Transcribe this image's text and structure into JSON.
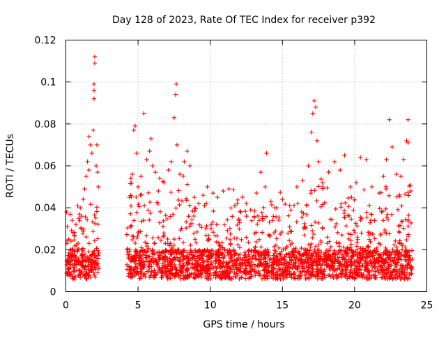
{
  "chart_data": {
    "type": "scatter",
    "title": "Day 128 of 2023, Rate Of TEC Index for receiver p392",
    "xlabel": "GPS time / hours",
    "ylabel": "ROTI / TECUs",
    "xlim": [
      0,
      25
    ],
    "ylim": [
      0,
      0.12
    ],
    "xticks": [
      0,
      5,
      10,
      15,
      20,
      25
    ],
    "xtick_labels": [
      "0",
      "5",
      "10",
      "15",
      "20",
      "25"
    ],
    "yticks": [
      0,
      0.02,
      0.04,
      0.06,
      0.08,
      0.1,
      0.12
    ],
    "ytick_labels": [
      "0",
      "0.02",
      "0.04",
      "0.06",
      "0.08",
      "0.1",
      "0.12"
    ],
    "grid": true,
    "marker": "plus",
    "color": "#ff0000",
    "data_gap_hours": [
      2.3,
      4.2
    ],
    "points": [
      [
        0.05,
        0.038
      ],
      [
        0.1,
        0.031
      ],
      [
        0.2,
        0.025
      ],
      [
        0.3,
        0.02
      ],
      [
        0.5,
        0.028
      ],
      [
        0.7,
        0.032
      ],
      [
        0.9,
        0.035
      ],
      [
        1.0,
        0.04
      ],
      [
        1.1,
        0.036
      ],
      [
        1.2,
        0.044
      ],
      [
        1.3,
        0.049
      ],
      [
        1.4,
        0.055
      ],
      [
        1.5,
        0.062
      ],
      [
        1.6,
        0.058
      ],
      [
        1.6,
        0.074
      ],
      [
        1.7,
        0.07
      ],
      [
        1.8,
        0.066
      ],
      [
        1.9,
        0.077
      ],
      [
        2.0,
        0.112
      ],
      [
        2.0,
        0.109
      ],
      [
        1.95,
        0.099
      ],
      [
        1.95,
        0.096
      ],
      [
        1.95,
        0.092
      ],
      [
        2.1,
        0.06
      ],
      [
        2.15,
        0.07
      ],
      [
        2.2,
        0.057
      ],
      [
        2.25,
        0.05
      ],
      [
        4.4,
        0.045
      ],
      [
        4.5,
        0.054
      ],
      [
        4.6,
        0.056
      ],
      [
        4.7,
        0.077
      ],
      [
        4.8,
        0.079
      ],
      [
        4.9,
        0.066
      ],
      [
        5.0,
        0.05
      ],
      [
        5.2,
        0.055
      ],
      [
        5.4,
        0.085
      ],
      [
        5.6,
        0.063
      ],
      [
        5.8,
        0.067
      ],
      [
        5.9,
        0.073
      ],
      [
        6.0,
        0.06
      ],
      [
        6.2,
        0.057
      ],
      [
        6.5,
        0.054
      ],
      [
        6.8,
        0.052
      ],
      [
        7.1,
        0.058
      ],
      [
        7.3,
        0.062
      ],
      [
        7.5,
        0.083
      ],
      [
        7.6,
        0.094
      ],
      [
        7.65,
        0.099
      ],
      [
        7.7,
        0.07
      ],
      [
        7.9,
        0.056
      ],
      [
        8.2,
        0.062
      ],
      [
        8.4,
        0.067
      ],
      [
        8.6,
        0.06
      ],
      [
        8.9,
        0.045
      ],
      [
        9.2,
        0.042
      ],
      [
        9.5,
        0.046
      ],
      [
        9.8,
        0.05
      ],
      [
        10.2,
        0.047
      ],
      [
        10.5,
        0.045
      ],
      [
        10.9,
        0.048
      ],
      [
        11.3,
        0.049
      ],
      [
        11.7,
        0.041
      ],
      [
        12.1,
        0.038
      ],
      [
        12.5,
        0.036
      ],
      [
        12.8,
        0.039
      ],
      [
        13.2,
        0.047
      ],
      [
        13.5,
        0.057
      ],
      [
        13.8,
        0.05
      ],
      [
        13.9,
        0.066
      ],
      [
        14.2,
        0.043
      ],
      [
        14.6,
        0.04
      ],
      [
        15.0,
        0.044
      ],
      [
        15.5,
        0.041
      ],
      [
        16.0,
        0.05
      ],
      [
        16.4,
        0.053
      ],
      [
        16.8,
        0.06
      ],
      [
        17.0,
        0.076
      ],
      [
        17.1,
        0.085
      ],
      [
        17.2,
        0.091
      ],
      [
        17.3,
        0.088
      ],
      [
        17.4,
        0.072
      ],
      [
        17.5,
        0.062
      ],
      [
        17.8,
        0.05
      ],
      [
        18.2,
        0.057
      ],
      [
        18.6,
        0.062
      ],
      [
        19.0,
        0.058
      ],
      [
        19.3,
        0.065
      ],
      [
        19.7,
        0.05
      ],
      [
        20.1,
        0.052
      ],
      [
        20.4,
        0.064
      ],
      [
        20.8,
        0.063
      ],
      [
        21.2,
        0.05
      ],
      [
        21.7,
        0.047
      ],
      [
        22.0,
        0.055
      ],
      [
        22.2,
        0.063
      ],
      [
        22.4,
        0.082
      ],
      [
        22.6,
        0.069
      ],
      [
        22.9,
        0.056
      ],
      [
        23.2,
        0.055
      ],
      [
        23.4,
        0.063
      ],
      [
        23.6,
        0.072
      ],
      [
        23.7,
        0.071
      ],
      [
        23.7,
        0.082
      ],
      [
        23.9,
        0.048
      ]
    ]
  }
}
